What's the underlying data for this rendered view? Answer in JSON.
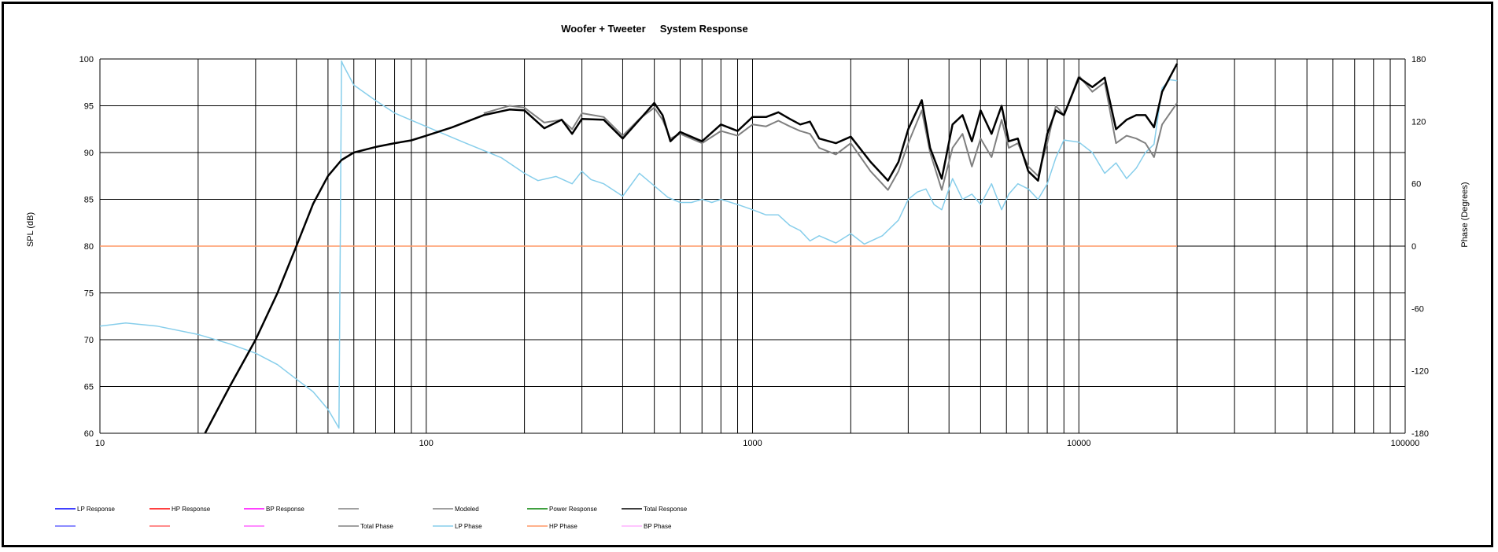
{
  "chart_data": {
    "type": "line",
    "title": "Woofer + Tweeter     System Response",
    "xlabel": "",
    "ylabel": "SPL (dB)",
    "y2label": "Phase (Degrees)",
    "xscale": "log",
    "xlim": [
      10,
      100000
    ],
    "ylim": [
      60,
      100
    ],
    "y2lim": [
      -180,
      180
    ],
    "grid": true,
    "x_ticks": [
      {
        "v": 10,
        "label": "10"
      },
      {
        "v": 100,
        "label": "100"
      },
      {
        "v": 1000,
        "label": "1000"
      },
      {
        "v": 10000,
        "label": "10000"
      },
      {
        "v": 100000,
        "label": "100000"
      }
    ],
    "y_ticks": [
      {
        "v": 100,
        "label": "100"
      },
      {
        "v": 95,
        "label": "95"
      },
      {
        "v": 90,
        "label": "90"
      },
      {
        "v": 85,
        "label": "85"
      },
      {
        "v": 80,
        "label": "80"
      },
      {
        "v": 75,
        "label": "75"
      },
      {
        "v": 70,
        "label": "70"
      },
      {
        "v": 65,
        "label": "65"
      },
      {
        "v": 60,
        "label": "60"
      }
    ],
    "y2_ticks": [
      {
        "v": 180,
        "label": "180"
      },
      {
        "v": 120,
        "label": "120"
      },
      {
        "v": 60,
        "label": "60"
      },
      {
        "v": 0,
        "label": "0"
      },
      {
        "v": -60,
        "label": "-60"
      },
      {
        "v": -120,
        "label": "-120"
      },
      {
        "v": -180,
        "label": "-180"
      }
    ],
    "legend_position": "bottom",
    "legend": [
      {
        "label": "LP Response",
        "color": "#0000ff",
        "row": 0,
        "col": 0
      },
      {
        "label": "HP Response",
        "color": "#ff0000",
        "row": 0,
        "col": 1
      },
      {
        "label": "BP Response",
        "color": "#ff00ff",
        "row": 0,
        "col": 2
      },
      {
        "label": "",
        "color": "#808080",
        "row": 0,
        "col": 3
      },
      {
        "label": "Modeled",
        "color": "#808080",
        "row": 0,
        "col": 4
      },
      {
        "label": "Power Response",
        "color": "#008000",
        "row": 0,
        "col": 5
      },
      {
        "label": "Total Response",
        "color": "#000000",
        "row": 0,
        "col": 6
      },
      {
        "label": "",
        "color": "#6666ff",
        "row": 1,
        "col": 0
      },
      {
        "label": "",
        "color": "#ff6666",
        "row": 1,
        "col": 1
      },
      {
        "label": "",
        "color": "#ff66ff",
        "row": 1,
        "col": 2
      },
      {
        "label": "Total Phase",
        "color": "#808080",
        "row": 1,
        "col": 3
      },
      {
        "label": "LP Phase",
        "color": "#87ceeb",
        "row": 1,
        "col": 4
      },
      {
        "label": "HP Phase",
        "color": "#ff9966",
        "row": 1,
        "col": 5
      },
      {
        "label": "BP Phase",
        "color": "#ffb3ff",
        "row": 1,
        "col": 6
      }
    ],
    "series": [
      {
        "name": "Total Response",
        "axis": "left",
        "color": "#000000",
        "x": [
          21,
          25,
          30,
          35,
          40,
          45,
          50,
          55,
          60,
          70,
          80,
          90,
          100,
          120,
          150,
          180,
          200,
          230,
          260,
          280,
          300,
          350,
          400,
          450,
          500,
          530,
          560,
          600,
          700,
          800,
          900,
          1000,
          1100,
          1200,
          1300,
          1400,
          1500,
          1600,
          1800,
          2000,
          2300,
          2600,
          2800,
          3000,
          3300,
          3500,
          3800,
          4100,
          4400,
          4700,
          5000,
          5400,
          5800,
          6100,
          6500,
          7000,
          7500,
          8000,
          8500,
          9000,
          10000,
          11000,
          12000,
          13000,
          14000,
          15000,
          16000,
          17000,
          18000,
          20000
        ],
        "values": [
          60.0,
          65.0,
          70.0,
          75.0,
          80.0,
          84.5,
          87.5,
          89.2,
          90.0,
          90.6,
          91.0,
          91.3,
          91.8,
          92.7,
          94.0,
          94.6,
          94.5,
          92.6,
          93.5,
          92.0,
          93.6,
          93.5,
          91.5,
          93.5,
          95.3,
          94.0,
          91.2,
          92.2,
          91.2,
          93.0,
          92.3,
          93.8,
          93.8,
          94.3,
          93.6,
          93.0,
          93.3,
          91.5,
          91.0,
          91.7,
          89.0,
          87.0,
          89.0,
          92.5,
          95.6,
          90.5,
          87.2,
          93.0,
          94.0,
          91.2,
          94.5,
          92.0,
          95.0,
          91.2,
          91.5,
          88.0,
          87.0,
          92.0,
          94.5,
          94.0,
          98.0,
          97.0,
          98.0,
          92.5,
          93.5,
          94.0,
          94.0,
          92.7,
          96.5,
          99.5
        ]
      },
      {
        "name": "Modeled",
        "axis": "left",
        "color": "#808080",
        "x": [
          150,
          180,
          200,
          230,
          260,
          280,
          300,
          350,
          400,
          450,
          500,
          530,
          560,
          600,
          700,
          800,
          900,
          1000,
          1100,
          1200,
          1300,
          1400,
          1500,
          1600,
          1800,
          2000,
          2300,
          2600,
          2800,
          3000,
          3300,
          3500,
          3800,
          4100,
          4400,
          4700,
          5000,
          5400,
          5800,
          6100,
          6500,
          7000,
          7500,
          8000,
          8500,
          9000,
          10000,
          11000,
          12000,
          13000,
          14000,
          15000,
          16000,
          17000,
          18000,
          20000
        ],
        "values": [
          94.2,
          95.0,
          94.8,
          93.2,
          93.5,
          92.5,
          94.2,
          93.8,
          91.8,
          93.6,
          94.8,
          93.5,
          91.5,
          92.0,
          91.0,
          92.3,
          91.8,
          93.0,
          92.8,
          93.4,
          92.8,
          92.3,
          92.0,
          90.5,
          89.8,
          91.0,
          88.0,
          86.0,
          88.0,
          91.0,
          94.5,
          90.0,
          86.0,
          90.5,
          92.0,
          88.5,
          91.5,
          89.5,
          93.5,
          90.5,
          91.0,
          88.5,
          87.5,
          91.0,
          95.0,
          94.0,
          98.2,
          96.5,
          97.5,
          91.0,
          91.8,
          91.5,
          91.0,
          89.5,
          93.0,
          95.3
        ]
      },
      {
        "name": "LP Phase",
        "axis": "right",
        "color": "#87ceeb",
        "x": [
          10,
          12,
          15,
          20,
          25,
          30,
          35,
          40,
          45,
          50,
          54,
          55,
          55.5,
          60,
          70,
          80,
          100,
          130,
          170,
          200,
          220,
          250,
          280,
          300,
          320,
          350,
          400,
          450,
          500,
          550,
          600,
          650,
          700,
          750,
          800,
          900,
          1000,
          1100,
          1200,
          1300,
          1400,
          1500,
          1600,
          1800,
          2000,
          2200,
          2500,
          2800,
          3000,
          3200,
          3400,
          3600,
          3800,
          4100,
          4400,
          4700,
          5000,
          5400,
          5800,
          6100,
          6500,
          7000,
          7500,
          8000,
          8500,
          9000,
          10000,
          11000,
          12000,
          13000,
          14000,
          15000,
          16000,
          17000,
          18000,
          19000,
          20000
        ],
        "values": [
          -77,
          -74,
          -77,
          -85,
          -94,
          -103,
          -114,
          -128,
          -140,
          -157,
          -175,
          178,
          175,
          155,
          140,
          128,
          115,
          100,
          85,
          70,
          63,
          67,
          60,
          72,
          64,
          60,
          48,
          70,
          58,
          47,
          42,
          42,
          45,
          42,
          45,
          40,
          35,
          30,
          30,
          20,
          15,
          5,
          10,
          3,
          12,
          2,
          10,
          25,
          45,
          52,
          55,
          40,
          35,
          65,
          45,
          50,
          40,
          60,
          35,
          50,
          60,
          55,
          45,
          60,
          85,
          102,
          100,
          90,
          70,
          80,
          65,
          75,
          90,
          98,
          152,
          160,
          159
        ]
      },
      {
        "name": "HP Phase",
        "axis": "right",
        "color": "#ff9966",
        "x": [
          10,
          20000
        ],
        "values": [
          0,
          0
        ]
      }
    ]
  }
}
